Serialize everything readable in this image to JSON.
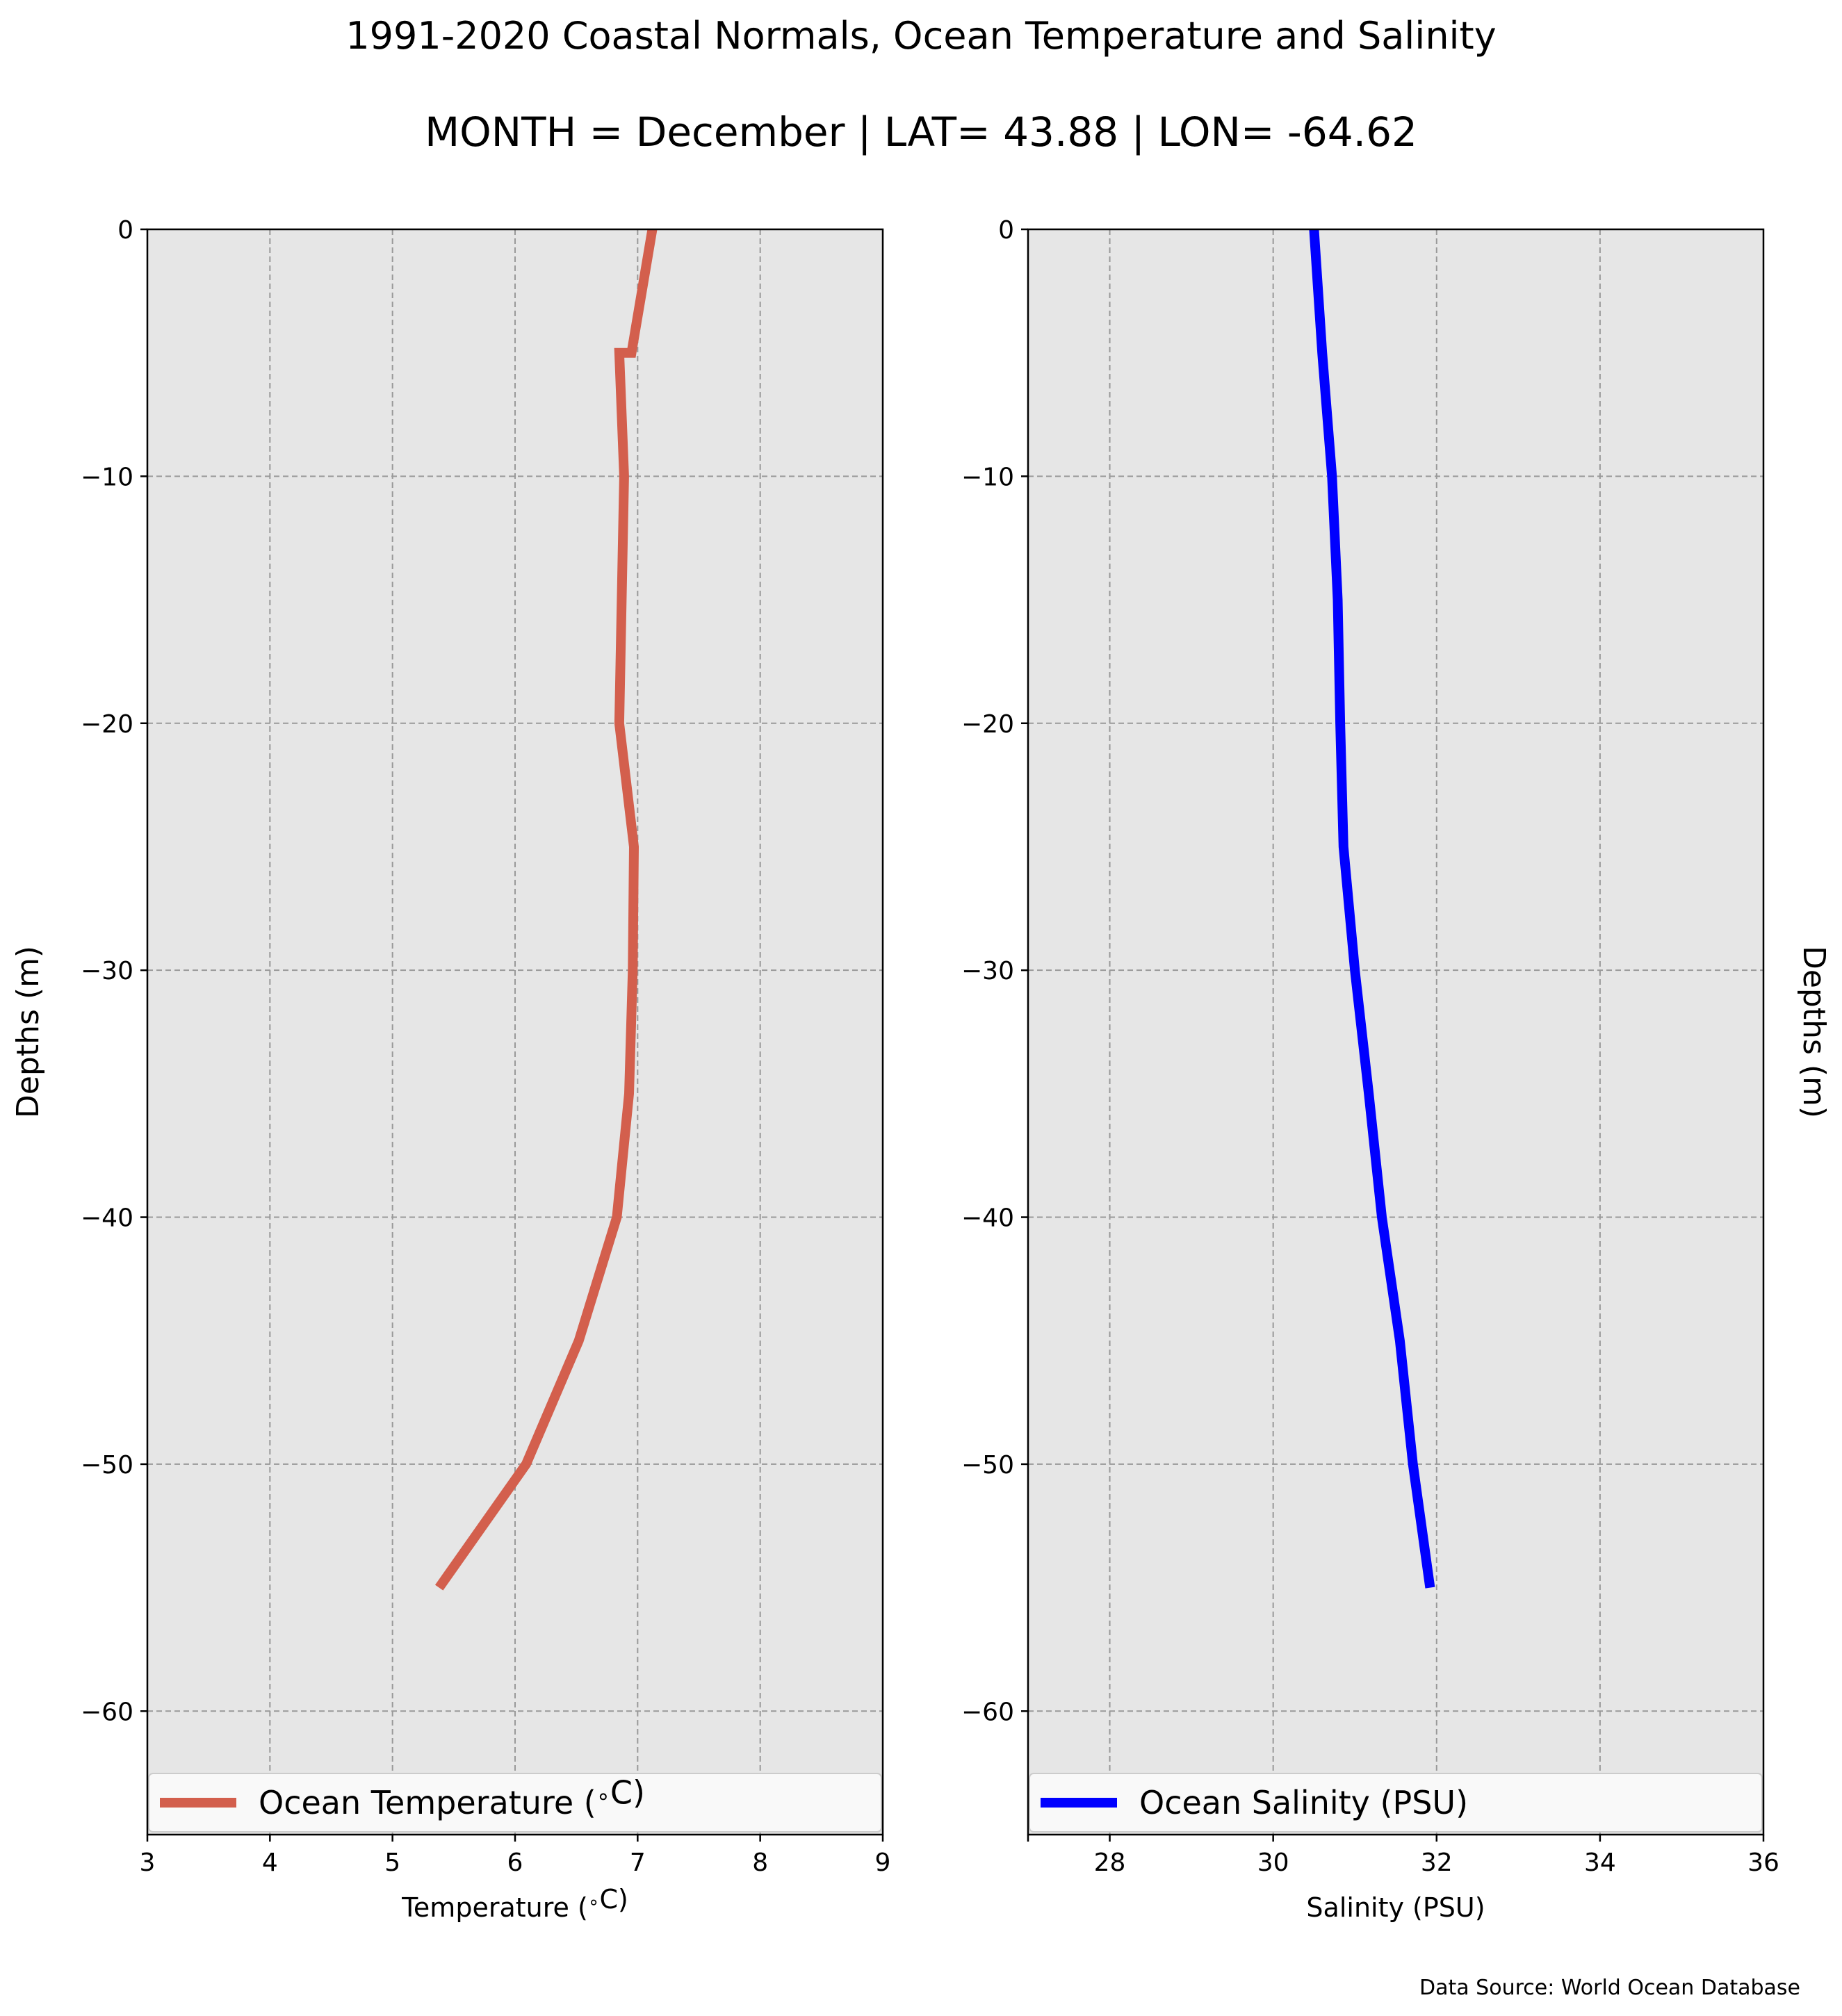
{
  "figure": {
    "title_line1": "1991-2020 Coastal Normals, Ocean Temperature and Salinity",
    "title_line2": "MONTH = December | LAT= 43.88 | LON= -64.62",
    "source_note": "Data Source: World Ocean Database"
  },
  "colors": {
    "temperature_line": "#d35f4d",
    "salinity_line": "#0000ff",
    "axes_background": "#e6e6e6",
    "grid": "#999999"
  },
  "chart_data": [
    {
      "type": "line",
      "orientation": "vertical-profile",
      "title": "",
      "xlabel": "Temperature ($^\\circ$C)",
      "ylabel": "Depths (m)",
      "xlim": [
        3,
        9
      ],
      "ylim": [
        -65,
        0
      ],
      "xticks": [
        3,
        4,
        5,
        6,
        7,
        8,
        9
      ],
      "xtick_labels": [
        "3",
        "4",
        "5",
        "6",
        "7",
        "8",
        "9"
      ],
      "yticks": [
        0,
        -10,
        -20,
        -30,
        -40,
        -50,
        -60
      ],
      "ytick_labels": [
        "0",
        "−10",
        "−20",
        "−30",
        "−40",
        "−50",
        "−60"
      ],
      "grid": true,
      "legend": "bottom",
      "series": [
        {
          "name": "Ocean Temperature ($^\\circ$C)",
          "x": [
            7.12,
            6.95,
            6.85,
            6.89,
            6.87,
            6.85,
            6.97,
            6.96,
            6.93,
            6.83,
            6.52,
            6.09,
            5.38
          ],
          "y": [
            0,
            -5,
            -5,
            -10,
            -15,
            -20,
            -25,
            -30,
            -35,
            -40,
            -45,
            -50,
            -55
          ]
        }
      ]
    },
    {
      "type": "line",
      "orientation": "vertical-profile",
      "title": "",
      "xlabel": "Salinity (PSU)",
      "ylabel": "Depths (m)",
      "xlim": [
        27,
        36
      ],
      "ylim": [
        -65,
        0
      ],
      "xticks": [
        28,
        30,
        32,
        34,
        36
      ],
      "xtick_labels": [
        "28",
        "30",
        "32",
        "34",
        "36"
      ],
      "yticks": [
        0,
        -10,
        -20,
        -30,
        -40,
        -50,
        -60
      ],
      "ytick_labels": [
        "0",
        "−10",
        "−20",
        "−30",
        "−40",
        "−50",
        "−60"
      ],
      "grid": true,
      "legend": "bottom",
      "series": [
        {
          "name": "Ocean Salinity (PSU)",
          "x": [
            30.5,
            30.6,
            30.72,
            30.79,
            30.82,
            30.86,
            31.0,
            31.17,
            31.33,
            31.55,
            31.71,
            31.92
          ],
          "y": [
            0,
            -5,
            -10,
            -15,
            -20,
            -25,
            -30,
            -35,
            -40,
            -45,
            -50,
            -55
          ]
        }
      ]
    }
  ]
}
